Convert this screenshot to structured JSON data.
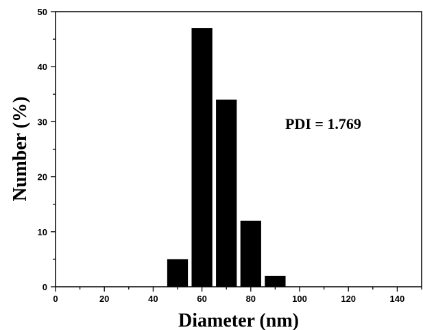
{
  "chart_data": {
    "type": "bar",
    "x": [
      50,
      60,
      70,
      80,
      90
    ],
    "values": [
      5,
      47,
      34,
      12,
      2
    ],
    "bar_width": 8.5,
    "xlabel": "Diameter (nm)",
    "ylabel": "Number (%)",
    "xlim": [
      0,
      150
    ],
    "ylim": [
      0,
      50
    ],
    "x_ticks": [
      "0",
      "20",
      "40",
      "60",
      "80",
      "100",
      "120",
      "140"
    ],
    "y_ticks": [
      "0",
      "10",
      "20",
      "30",
      "40",
      "50"
    ],
    "annotations": [
      "PDI = 1.769"
    ],
    "bar_color": "#000000",
    "grid": false
  }
}
